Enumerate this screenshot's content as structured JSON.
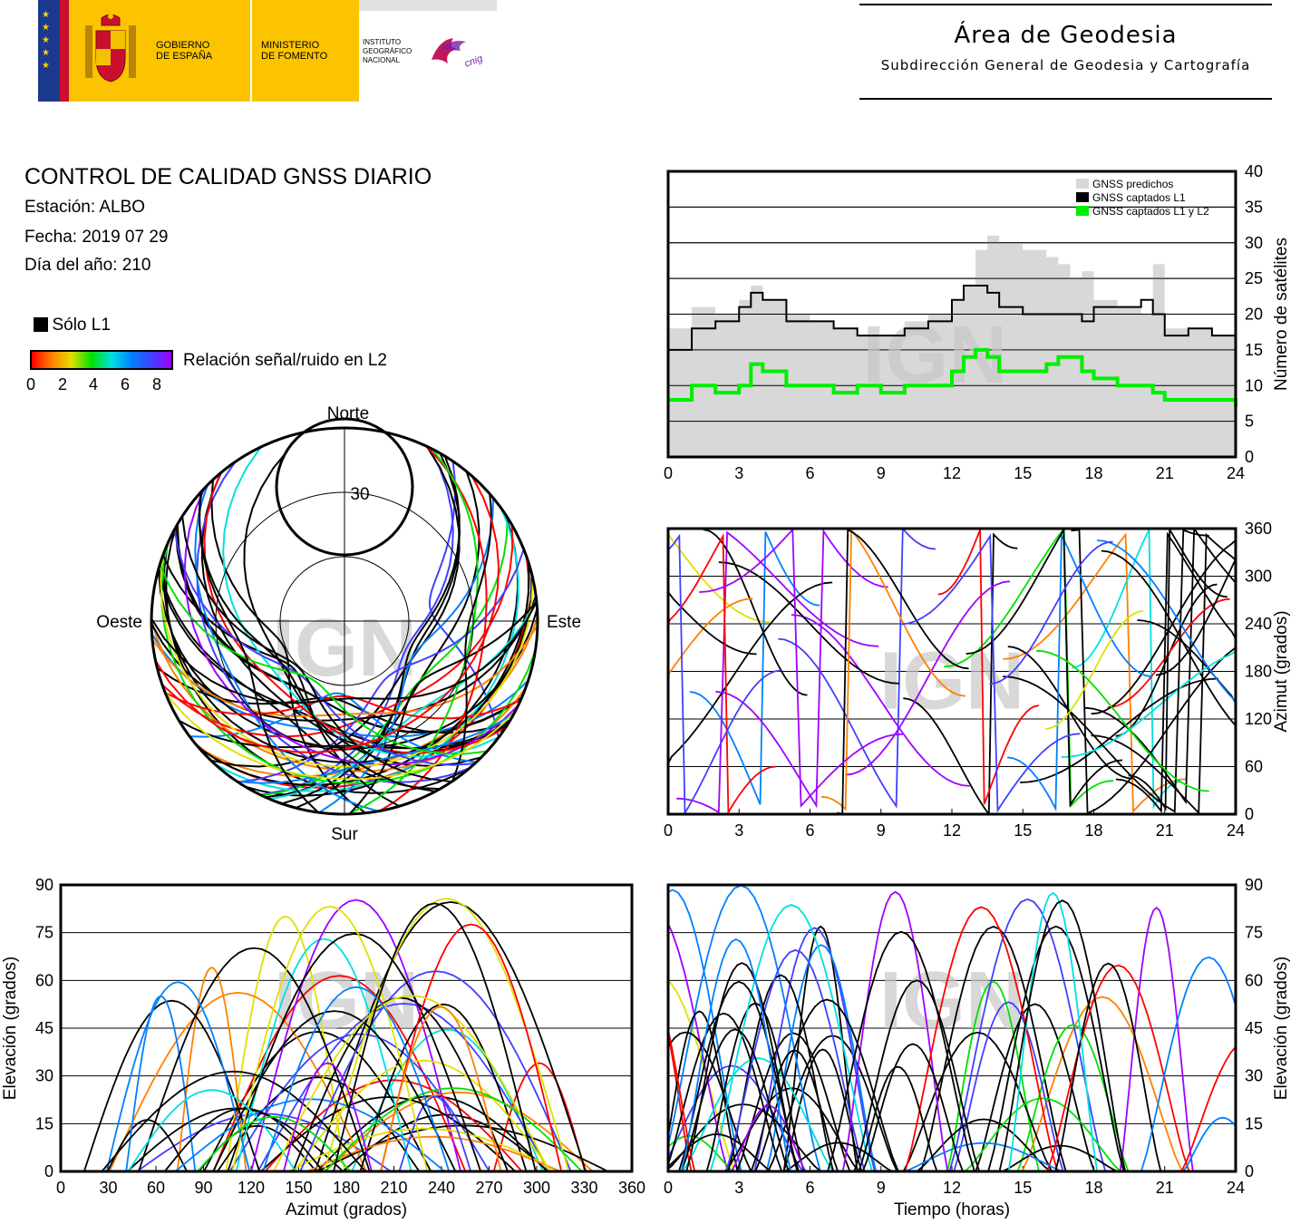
{
  "header": {
    "gov_line1": "GOBIERNO",
    "gov_line2": "DE ESPAÑA",
    "min_line1": "MINISTERIO",
    "min_line2": "DE FOMENTO",
    "ign_line1": "INSTITUTO",
    "ign_line2": "GEOGRÁFICO",
    "ign_line3": "NACIONAL",
    "cnig_logo": "cnig",
    "area_title": "Área de Geodesia",
    "area_subtitle": "Subdirección General de Geodesia y Cartografía"
  },
  "info": {
    "title": "CONTROL DE CALIDAD GNSS DIARIO",
    "station": "Estación: ALBO",
    "date": "Fecha: 2019 07 29",
    "doy": "Día del año: 210",
    "l1_only": "Sólo L1",
    "snr_label": "Relación señal/ruido en L2",
    "snr_ticks": [
      "0",
      "2",
      "4",
      "6",
      "8"
    ]
  },
  "colors": {
    "snr_scale": [
      "#ff0000",
      "#ff8000",
      "#e0e000",
      "#00e000",
      "#00e0e0",
      "#0080ff",
      "#4040ff",
      "#a000ff"
    ],
    "predicted": "#d8d8d8",
    "l1": "#000000",
    "l1l2": "#00ee00"
  },
  "watermark": "IGN",
  "chart_data": [
    {
      "type": "polar",
      "panel": "skyplot",
      "labels": {
        "north": "Norte",
        "south": "Sur",
        "east": "Este",
        "west": "Oeste"
      },
      "ring_label": "30"
    },
    {
      "type": "area",
      "panel": "satellite-count",
      "ylabel": "Número de satélites",
      "xlim": [
        0,
        24
      ],
      "ylim": [
        0,
        40
      ],
      "xticks": [
        "0",
        "3",
        "6",
        "9",
        "12",
        "15",
        "18",
        "21",
        "24"
      ],
      "yticks": [
        "0",
        "5",
        "10",
        "15",
        "20",
        "25",
        "30",
        "35",
        "40"
      ],
      "legend": [
        "GNSS predichos",
        "GNSS captados L1",
        "GNSS captados L1 y L2"
      ],
      "legend_position": "top-right",
      "series": [
        {
          "name": "GNSS predichos",
          "x": [
            0,
            1,
            2,
            3,
            3.5,
            4,
            5,
            6,
            7,
            8,
            9,
            10,
            11,
            12,
            12.5,
            13,
            13.5,
            14,
            15,
            16,
            16.5,
            17,
            17.5,
            18,
            19,
            20,
            20.5,
            21,
            22,
            23,
            24
          ],
          "values": [
            18,
            21,
            20,
            22,
            24,
            22,
            20,
            19,
            18,
            17,
            17,
            19,
            20,
            22,
            24,
            29,
            31,
            30,
            29,
            28,
            27,
            25,
            26,
            22,
            21,
            20,
            27,
            18,
            18,
            17,
            15
          ]
        },
        {
          "name": "GNSS captados L1",
          "x": [
            0,
            1,
            2,
            3,
            3.5,
            4,
            5,
            6,
            7,
            8,
            9,
            10,
            11,
            12,
            12.5,
            13,
            13.5,
            14,
            15,
            16,
            16.5,
            17,
            17.5,
            18,
            19,
            20,
            20.5,
            21,
            22,
            23,
            24
          ],
          "values": [
            15,
            18,
            19,
            21,
            23,
            22,
            19,
            19,
            18,
            17,
            17,
            18,
            19,
            22,
            24,
            24,
            23,
            21,
            20,
            20,
            20,
            20,
            19,
            21,
            21,
            22,
            20,
            17,
            18,
            17,
            15
          ]
        },
        {
          "name": "GNSS captados L1 y L2",
          "x": [
            0,
            1,
            2,
            3,
            3.5,
            4,
            5,
            6,
            7,
            8,
            9,
            10,
            11,
            12,
            12.5,
            13,
            13.5,
            14,
            15,
            16,
            16.5,
            17,
            17.5,
            18,
            19,
            20,
            20.5,
            21,
            22,
            23,
            24
          ],
          "values": [
            8,
            10,
            9,
            10,
            13,
            12,
            10,
            10,
            9,
            10,
            9,
            10,
            10,
            12,
            14,
            15,
            14,
            12,
            12,
            13,
            14,
            14,
            12,
            11,
            10,
            10,
            9,
            8,
            8,
            8,
            7
          ]
        }
      ]
    },
    {
      "type": "scatter",
      "panel": "azimuth-time",
      "ylabel": "Azimut (grados)",
      "xlim": [
        0,
        24
      ],
      "ylim": [
        0,
        360
      ],
      "xticks": [
        "0",
        "3",
        "6",
        "9",
        "12",
        "15",
        "18",
        "21",
        "24"
      ],
      "yticks": [
        "0",
        "60",
        "120",
        "180",
        "240",
        "300",
        "360"
      ]
    },
    {
      "type": "scatter",
      "panel": "elevation-azimuth",
      "xlabel": "Azimut (grados)",
      "ylabel": "Elevación (grados)",
      "xlim": [
        0,
        360
      ],
      "ylim": [
        0,
        90
      ],
      "xticks": [
        "0",
        "30",
        "60",
        "90",
        "120",
        "150",
        "180",
        "210",
        "240",
        "270",
        "300",
        "330",
        "360"
      ],
      "yticks": [
        "0",
        "15",
        "30",
        "45",
        "60",
        "75",
        "90"
      ]
    },
    {
      "type": "scatter",
      "panel": "elevation-time",
      "xlabel": "Tiempo (horas)",
      "ylabel": "Elevación (grados)",
      "xlim": [
        0,
        24
      ],
      "ylim": [
        0,
        90
      ],
      "xticks": [
        "0",
        "3",
        "6",
        "9",
        "12",
        "15",
        "18",
        "21",
        "24"
      ],
      "yticks": [
        "0",
        "15",
        "30",
        "45",
        "60",
        "75",
        "90"
      ]
    }
  ]
}
